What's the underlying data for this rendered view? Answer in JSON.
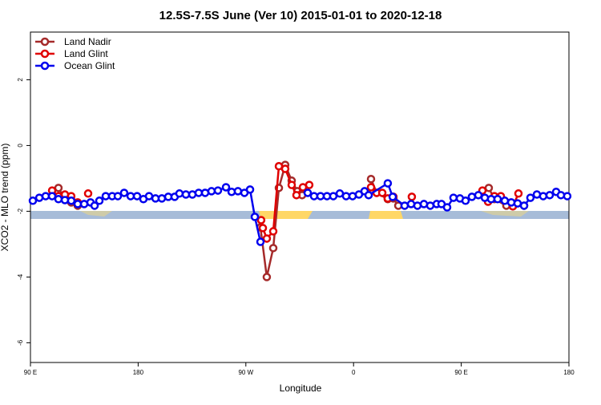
{
  "chart_data": {
    "type": "line",
    "title": "12.5S-7.5S June (Ver 10)   2015-01-01 to 2020-12-18",
    "x_label": "Longitude",
    "y_label": "XCO2 - MLO trend (ppm)",
    "xlim": [
      90,
      540
    ],
    "ylim": [
      -6.6,
      3.45
    ],
    "xticks": [
      {
        "value": 90,
        "label": "90 E"
      },
      {
        "value": 180,
        "label": "180"
      },
      {
        "value": 270,
        "label": "90 W"
      },
      {
        "value": 360,
        "label": "0"
      },
      {
        "value": 450,
        "label": "90 E"
      },
      {
        "value": 540,
        "label": "180"
      }
    ],
    "yticks": [
      -6,
      -4,
      -2,
      0,
      2
    ],
    "legend": "top-left",
    "series": [
      {
        "name": "Land Nadir",
        "color": "#a52a2a",
        "x": [
          113.4,
          118.8,
          124.1,
          129.5,
          null,
          282.2,
          287.5,
          292.9,
          297.6,
          302.9,
          308.3,
          313.0,
          317.0,
          null,
          374.6,
          379.3,
          388.6,
          393.3,
          397.4,
          null,
          473.0,
          477.7,
          487.7,
          493.1,
          502.5
        ],
        "values": [
          -1.29,
          -1.63,
          -1.73,
          -1.83,
          null,
          -2.49,
          -4.0,
          -3.12,
          -1.29,
          -0.59,
          -1.07,
          -1.39,
          -1.51,
          null,
          -1.02,
          -1.44,
          -1.63,
          -1.61,
          -1.83,
          null,
          -1.29,
          -1.63,
          -1.83,
          -1.85,
          -1.83
        ]
      },
      {
        "name": "Land Glint",
        "color": "#e00000",
        "x": [
          108.1,
          113.4,
          118.8,
          124.1,
          129.5,
          null,
          138.2,
          null,
          282.8,
          284.2,
          287.5,
          292.9,
          297.6,
          302.9,
          308.3,
          312.3,
          317.7,
          323.0,
          null,
          374.6,
          379.3,
          384.0,
          388.6,
          393.3,
          null,
          408.7,
          null,
          467.7,
          472.4,
          477.7,
          483.1,
          493.1,
          497.8
        ],
        "values": [
          -1.37,
          -1.54,
          -1.49,
          -1.54,
          -1.73,
          null,
          -1.46,
          null,
          -2.27,
          -2.51,
          -2.83,
          -2.61,
          -0.63,
          -0.71,
          -1.2,
          -1.51,
          -1.27,
          -1.2,
          null,
          -1.27,
          -1.44,
          -1.44,
          -1.61,
          -1.56,
          null,
          -1.56,
          null,
          -1.37,
          -1.71,
          -1.54,
          -1.54,
          -1.85,
          -1.46
        ]
      },
      {
        "name": "Ocean Glint",
        "color": "#0000ee",
        "x": [
          92.0,
          97.4,
          102.7,
          108.1,
          113.4,
          118.8,
          124.1,
          129.5,
          134.9,
          140.2,
          143.6,
          147.6,
          152.9,
          158.3,
          163.0,
          168.3,
          173.7,
          179.1,
          184.4,
          189.1,
          194.5,
          199.8,
          205.2,
          210.5,
          214.5,
          219.9,
          225.3,
          230.6,
          236.0,
          241.3,
          246.7,
          253.4,
          258.1,
          263.4,
          268.8,
          273.5,
          277.5,
          282.2,
          null,
          321.7,
          327.0,
          332.4,
          337.8,
          343.1,
          348.5,
          353.8,
          359.2,
          364.5,
          369.2,
          372.6,
          388.6,
          392.7,
          402.7,
          408.1,
          413.4,
          418.8,
          424.1,
          429.5,
          433.5,
          438.2,
          443.5,
          448.9,
          453.6,
          458.9,
          464.3,
          469.7,
          475.0,
          480.4,
          486.4,
          491.8,
          497.1,
          502.5,
          507.8,
          513.2,
          518.5,
          523.9,
          529.3,
          533.3,
          538.6
        ],
        "values": [
          -1.68,
          -1.59,
          -1.54,
          -1.54,
          -1.63,
          -1.66,
          -1.68,
          -1.78,
          -1.78,
          -1.73,
          -1.83,
          -1.68,
          -1.54,
          -1.54,
          -1.54,
          -1.44,
          -1.54,
          -1.54,
          -1.63,
          -1.54,
          -1.61,
          -1.61,
          -1.56,
          -1.56,
          -1.46,
          -1.49,
          -1.49,
          -1.44,
          -1.44,
          -1.39,
          -1.37,
          -1.27,
          -1.41,
          -1.39,
          -1.44,
          -1.34,
          -2.17,
          -2.93,
          null,
          -1.44,
          -1.54,
          -1.54,
          -1.54,
          -1.54,
          -1.46,
          -1.54,
          -1.54,
          -1.49,
          -1.39,
          -1.51,
          -1.15,
          -1.56,
          -1.83,
          -1.78,
          -1.83,
          -1.78,
          -1.83,
          -1.78,
          -1.78,
          -1.88,
          -1.59,
          -1.61,
          -1.68,
          -1.56,
          -1.51,
          -1.59,
          -1.63,
          -1.63,
          -1.68,
          -1.73,
          -1.76,
          -1.83,
          -1.59,
          -1.49,
          -1.54,
          -1.51,
          -1.41,
          -1.51,
          -1.54
        ]
      }
    ]
  }
}
